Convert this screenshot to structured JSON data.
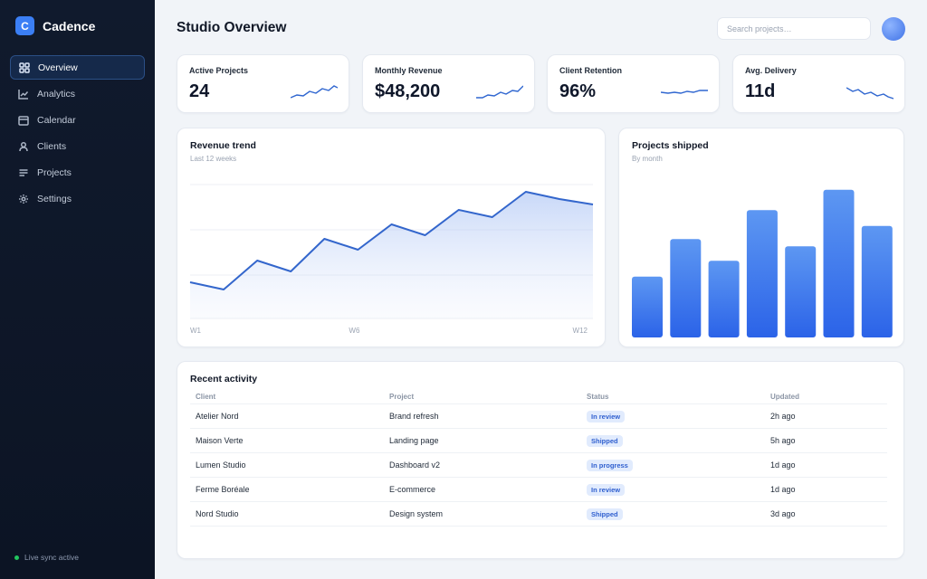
{
  "app": {
    "name": "Cadence",
    "logo_letter": "C"
  },
  "sidebar": {
    "items": [
      {
        "label": "Overview",
        "icon": "grid-icon",
        "active": true
      },
      {
        "label": "Analytics",
        "icon": "line-chart-icon",
        "active": false
      },
      {
        "label": "Calendar",
        "icon": "calendar-icon",
        "active": false
      },
      {
        "label": "Clients",
        "icon": "user-icon",
        "active": false
      },
      {
        "label": "Projects",
        "icon": "list-icon",
        "active": false
      },
      {
        "label": "Settings",
        "icon": "gear-icon",
        "active": false
      }
    ],
    "status": "Live sync active"
  },
  "header": {
    "title": "Studio Overview",
    "search_placeholder": "Search projects…",
    "avatar": "avatar"
  },
  "kpis": [
    {
      "label": "Active Projects",
      "value": "24"
    },
    {
      "label": "Monthly Revenue",
      "value": "$48,200"
    },
    {
      "label": "Client Retention",
      "value": "96%"
    },
    {
      "label": "Avg. Delivery",
      "value": "11d"
    }
  ],
  "revenue": {
    "title": "Revenue trend",
    "subtitle": "Last 12 weeks",
    "x_labels": [
      "W1",
      "W6",
      "W12"
    ]
  },
  "shipped": {
    "title": "Projects shipped",
    "subtitle": "By month"
  },
  "activity": {
    "title": "Recent activity",
    "columns": [
      "Client",
      "Project",
      "Status",
      "Updated"
    ],
    "rows": [
      {
        "client": "Atelier Nord",
        "project": "Brand refresh",
        "status": "In review",
        "updated": "2h ago"
      },
      {
        "client": "Maison Verte",
        "project": "Landing page",
        "status": "Shipped",
        "updated": "5h ago"
      },
      {
        "client": "Lumen Studio",
        "project": "Dashboard v2",
        "status": "In progress",
        "updated": "1d ago"
      },
      {
        "client": "Ferme Boréale",
        "project": "E-commerce",
        "status": "In review",
        "updated": "1d ago"
      },
      {
        "client": "Nord Studio",
        "project": "Design system",
        "status": "Shipped",
        "updated": "3d ago"
      }
    ]
  },
  "colors": {
    "accent": "#3b7ff5",
    "sidebar_bg": "#0f1829",
    "badge_bg": "#e1ebfd",
    "badge_text": "#2f5fcf"
  },
  "chart_data": [
    {
      "type": "area",
      "title": "Revenue trend",
      "subtitle": "Last 12 weeks",
      "x": [
        1,
        2,
        3,
        4,
        5,
        6,
        7,
        8,
        9,
        10,
        11,
        12,
        13
      ],
      "tick_labels": [
        "W1",
        "W6",
        "W12"
      ],
      "values": [
        20,
        16,
        32,
        26,
        44,
        38,
        52,
        46,
        60,
        56,
        70,
        66,
        63
      ],
      "ylim": [
        0,
        80
      ],
      "grid": true
    },
    {
      "type": "bar",
      "title": "Projects shipped",
      "subtitle": "By month",
      "values": [
        42,
        68,
        53,
        88,
        63,
        102,
        77
      ],
      "ylim": [
        0,
        105
      ]
    }
  ]
}
